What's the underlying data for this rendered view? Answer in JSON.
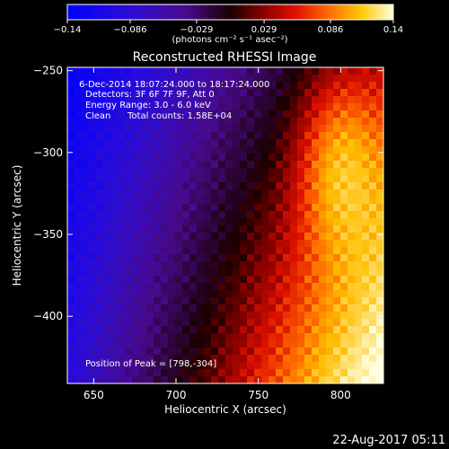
{
  "chart_data": {
    "type": "heatmap",
    "title": "Reconstructed RHESSI Image",
    "xlabel": "Heliocentric X (arcsec)",
    "ylabel": "Heliocentric Y (arcsec)",
    "xlim": [
      634,
      826
    ],
    "ylim": [
      -441,
      -248
    ],
    "x_ticks": [
      650,
      700,
      750,
      800
    ],
    "y_ticks": [
      -250,
      -300,
      -350,
      -400
    ],
    "x_tick_labels": [
      "650",
      "700",
      "750",
      "800"
    ],
    "y_tick_labels": [
      "−250",
      "−300",
      "−350",
      "−400"
    ],
    "colorbar": {
      "range": [
        -0.14,
        0.14
      ],
      "ticks": [
        -0.14,
        -0.086,
        -0.029,
        0.029,
        0.086,
        0.14
      ],
      "tick_labels": [
        "−0.14",
        "−0.086",
        "−0.029",
        "0.029",
        "0.086",
        "0.14"
      ],
      "unit_label": "(photons cm⁻² s⁻¹ asec⁻²)"
    },
    "annotations": {
      "time_range": "6-Dec-2014 18:07:24.000 to 18:17:24.000",
      "detectors": "Detectors: 3F 6F 7F 9F, Att 0",
      "energy": "Energy Range: 3.0 - 6.0 keV",
      "clean_label": "Clean",
      "total_counts": "Total counts: 1.58E+04",
      "peak": "Position of Peak = [798,-304]"
    },
    "peak_position": [
      798,
      -304
    ],
    "timestamp": "22-Aug-2017 05:11"
  }
}
